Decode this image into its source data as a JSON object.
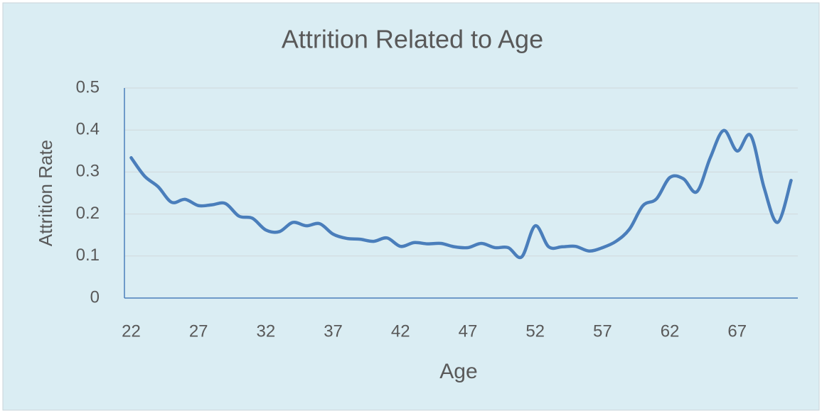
{
  "chart_data": {
    "type": "line",
    "title": "Attrition Related to Age",
    "x_label": "Age",
    "y_label": "Attrition Rate",
    "categories": [
      "22",
      null,
      null,
      null,
      null,
      "27",
      null,
      null,
      null,
      null,
      "32",
      null,
      null,
      null,
      null,
      "37",
      null,
      null,
      null,
      null,
      "42",
      null,
      null,
      null,
      null,
      "47",
      null,
      null,
      null,
      null,
      "52",
      null,
      null,
      null,
      null,
      "57",
      null,
      null,
      null,
      null,
      "62",
      null,
      null,
      null,
      null,
      "67",
      null,
      null,
      null,
      null
    ],
    "series": [
      {
        "name": "Attrition Rate",
        "color": "#4a7ebb",
        "values": [
          0.334,
          0.29,
          0.265,
          0.228,
          0.235,
          0.22,
          0.222,
          0.225,
          0.195,
          0.19,
          0.162,
          0.158,
          0.18,
          0.172,
          0.177,
          0.152,
          0.142,
          0.14,
          0.135,
          0.143,
          0.123,
          0.132,
          0.129,
          0.13,
          0.122,
          0.12,
          0.13,
          0.12,
          0.12,
          0.098,
          0.172,
          0.122,
          0.122,
          0.123,
          0.112,
          0.12,
          0.135,
          0.164,
          0.22,
          0.236,
          0.287,
          0.284,
          0.253,
          0.334,
          0.399,
          0.35,
          0.387,
          0.262,
          0.18,
          0.28
        ]
      }
    ],
    "ylim": [
      0,
      0.5
    ],
    "yticks": [
      0,
      0.1,
      0.2,
      0.3,
      0.4,
      0.5
    ],
    "grid": true
  }
}
